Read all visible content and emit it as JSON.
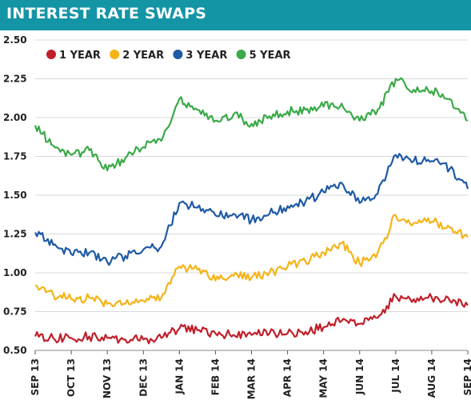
{
  "title": "INTEREST RATE SWAPS",
  "colors": {
    "header_bg": "#1495a5",
    "one_year": "#c0202a",
    "two_year": "#f5b418",
    "three_year": "#1e5aa6",
    "five_year": "#3aaa48",
    "grid": "#d9d9d9"
  },
  "chart_data": {
    "type": "line",
    "title": "INTEREST RATE SWAPS",
    "xlabel": "",
    "ylabel": "",
    "ylim": [
      0.5,
      2.5
    ],
    "yticks": [
      "2.50",
      "2.25",
      "2.00",
      "1.75",
      "1.50",
      "1.25",
      "1.00",
      "0.75",
      "0.50"
    ],
    "ytick_values": [
      2.5,
      2.25,
      2.0,
      1.75,
      1.5,
      1.25,
      1.0,
      0.75,
      0.5
    ],
    "xticks": [
      "SEP 13",
      "OCT 13",
      "NOV 13",
      "DEC 13",
      "JAN 14",
      "FEB 14",
      "MAR 14",
      "APR 14",
      "MAY 14",
      "JUN 14",
      "JUL 14",
      "AUG 14",
      "SEP 14"
    ],
    "xtick_positions": [
      0,
      1,
      2,
      3,
      4,
      5,
      6,
      7,
      8,
      9,
      10,
      11,
      12
    ],
    "grid": "horizontal",
    "legend_position": "top-left",
    "x": [
      0,
      0.5,
      1,
      1.5,
      2,
      2.5,
      3,
      3.5,
      4,
      4.5,
      5,
      5.5,
      6,
      6.5,
      7,
      7.5,
      8,
      8.5,
      9,
      9.5,
      10,
      10.5,
      11,
      11.5,
      12
    ],
    "series": [
      {
        "name": "1 YEAR",
        "color": "#c0202a",
        "values": [
          0.59,
          0.58,
          0.58,
          0.59,
          0.58,
          0.57,
          0.57,
          0.58,
          0.64,
          0.63,
          0.61,
          0.6,
          0.6,
          0.61,
          0.61,
          0.62,
          0.65,
          0.69,
          0.67,
          0.71,
          0.85,
          0.83,
          0.84,
          0.82,
          0.79
        ]
      },
      {
        "name": "2 YEAR",
        "color": "#f5b418",
        "values": [
          0.92,
          0.86,
          0.83,
          0.84,
          0.8,
          0.8,
          0.82,
          0.84,
          1.04,
          1.02,
          0.95,
          0.98,
          0.97,
          1.0,
          1.04,
          1.07,
          1.13,
          1.19,
          1.06,
          1.13,
          1.37,
          1.32,
          1.33,
          1.29,
          1.23
        ]
      },
      {
        "name": "3 YEAR",
        "color": "#1e5aa6",
        "values": [
          1.26,
          1.18,
          1.12,
          1.13,
          1.07,
          1.11,
          1.15,
          1.17,
          1.45,
          1.42,
          1.37,
          1.38,
          1.34,
          1.38,
          1.43,
          1.46,
          1.52,
          1.58,
          1.45,
          1.51,
          1.76,
          1.72,
          1.72,
          1.67,
          1.54
        ]
      },
      {
        "name": "5 YEAR",
        "color": "#3aaa48",
        "values": [
          1.95,
          1.82,
          1.76,
          1.79,
          1.66,
          1.74,
          1.81,
          1.85,
          2.12,
          2.05,
          1.98,
          2.02,
          1.96,
          2.01,
          2.04,
          2.05,
          2.07,
          2.09,
          1.98,
          2.05,
          2.25,
          2.18,
          2.17,
          2.12,
          1.98
        ]
      }
    ]
  }
}
